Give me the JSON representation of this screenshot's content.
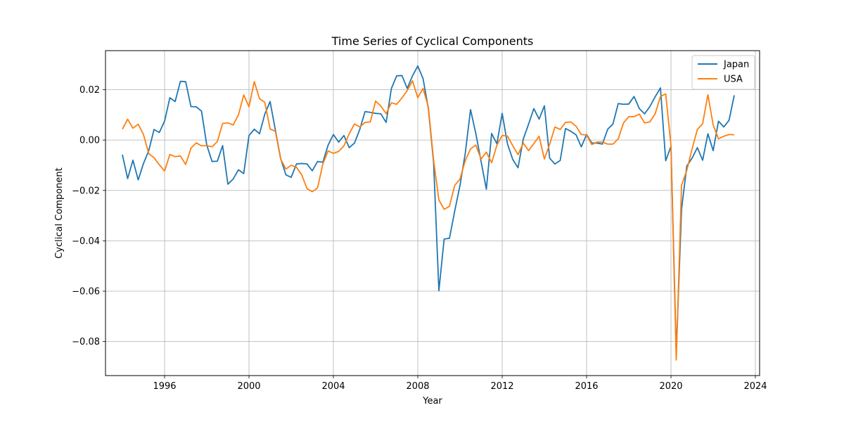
{
  "chart_data": {
    "type": "line",
    "title": "Time Series of Cyclical Components",
    "xlabel": "Year",
    "ylabel": "Cyclical Component",
    "xlim": [
      1993.2,
      2024.2
    ],
    "ylim": [
      -0.0935,
      0.0355
    ],
    "xticks": [
      1996,
      2000,
      2004,
      2008,
      2012,
      2016,
      2020,
      2024
    ],
    "yticks": [
      0.02,
      0.0,
      -0.02,
      -0.04,
      -0.06,
      -0.08
    ],
    "ytick_labels": [
      "0.02",
      "0.00",
      "−0.02",
      "−0.04",
      "−0.06",
      "−0.08"
    ],
    "grid": true,
    "legend_position": "top-right",
    "x_start": 1994.0,
    "x_step": 0.25,
    "series": [
      {
        "name": "Japan",
        "color": "#1f77b4",
        "values": [
          -0.0058,
          -0.0153,
          -0.008,
          -0.0158,
          -0.0093,
          -0.0042,
          0.0042,
          0.003,
          0.0075,
          0.0168,
          0.0153,
          0.0233,
          0.0232,
          0.0133,
          0.0132,
          0.0115,
          -0.002,
          -0.0085,
          -0.0084,
          -0.0022,
          -0.0175,
          -0.0155,
          -0.0118,
          -0.0133,
          0.0018,
          0.0043,
          0.0025,
          0.0103,
          0.0153,
          0.004,
          -0.0073,
          -0.0138,
          -0.0148,
          -0.0095,
          -0.0093,
          -0.0095,
          -0.0122,
          -0.0085,
          -0.0088,
          -0.002,
          0.0022,
          -0.0008,
          0.0018,
          -0.003,
          -0.0012,
          0.0042,
          0.0113,
          0.011,
          0.0106,
          0.0104,
          0.007,
          0.0205,
          0.0255,
          0.0256,
          0.0205,
          0.0255,
          0.0294,
          0.0244,
          0.0126,
          -0.009,
          -0.0598,
          -0.0393,
          -0.039,
          -0.0282,
          -0.018,
          -0.0053,
          0.0121,
          0.0026,
          -0.0085,
          -0.0195,
          0.0026,
          -0.0015,
          0.0106,
          -0.0015,
          -0.0077,
          -0.011,
          0.0004,
          0.0063,
          0.0125,
          0.0083,
          0.0136,
          -0.0072,
          -0.0095,
          -0.0081,
          0.0046,
          0.0035,
          0.0021,
          -0.0027,
          0.0022,
          -0.0012,
          -0.0012,
          -0.0016,
          0.0043,
          0.0064,
          0.0145,
          0.0142,
          0.0143,
          0.0173,
          0.0125,
          0.0104,
          0.0133,
          0.0172,
          0.0207,
          -0.0082,
          -0.0025,
          -0.0843,
          -0.0275,
          -0.0103,
          -0.0072,
          -0.003,
          -0.008,
          0.0025,
          -0.0042,
          0.0075,
          0.0052,
          0.0078,
          0.0178
        ]
      },
      {
        "name": "USA",
        "color": "#ff7f0e",
        "values": [
          0.0043,
          0.0083,
          0.0047,
          0.0063,
          0.0022,
          -0.0054,
          -0.007,
          -0.0098,
          -0.0123,
          -0.0057,
          -0.0066,
          -0.0063,
          -0.0097,
          -0.0032,
          -0.0011,
          -0.0023,
          -0.0022,
          -0.0027,
          -0.0006,
          0.0066,
          0.0068,
          0.006,
          0.01,
          0.0179,
          0.0132,
          0.0232,
          0.0164,
          0.015,
          0.0044,
          0.0035,
          -0.0075,
          -0.0115,
          -0.01,
          -0.0108,
          -0.0138,
          -0.0193,
          -0.0205,
          -0.019,
          -0.0095,
          -0.0043,
          -0.0053,
          -0.0045,
          -0.0023,
          0.0025,
          0.0064,
          0.0052,
          0.007,
          0.0072,
          0.0155,
          0.0135,
          0.0105,
          0.0148,
          0.0142,
          0.0167,
          0.0197,
          0.0235,
          0.0168,
          0.0205,
          0.0132,
          -0.008,
          -0.0238,
          -0.0275,
          -0.0263,
          -0.018,
          -0.0155,
          -0.0082,
          -0.0035,
          -0.002,
          -0.0075,
          -0.0048,
          -0.009,
          -0.002,
          0.0018,
          0.0016,
          -0.0022,
          -0.0058,
          -0.0012,
          -0.0042,
          -0.0014,
          0.0015,
          -0.0075,
          -0.0017,
          0.0052,
          0.0042,
          0.007,
          0.0072,
          0.0055,
          0.0022,
          0.002,
          -0.0018,
          -0.0008,
          -0.0008,
          -0.0016,
          -0.0016,
          0.0005,
          0.0068,
          0.0093,
          0.0093,
          0.0103,
          0.0068,
          0.0072,
          0.0104,
          0.0173,
          0.0183,
          -0.0022,
          -0.0873,
          -0.018,
          -0.012,
          -0.0035,
          0.0042,
          0.0065,
          0.018,
          0.006,
          0.0005,
          0.0015,
          0.0022,
          0.0021
        ]
      }
    ]
  }
}
